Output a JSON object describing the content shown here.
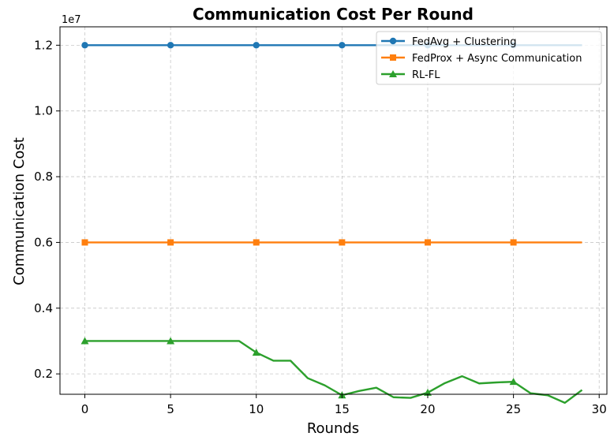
{
  "chart_data": {
    "type": "line",
    "title": "Communication Cost Per Round",
    "xlabel": "Rounds",
    "ylabel": "Communication Cost",
    "y_offset_label": "1e7",
    "xlim": [
      -1.45,
      30.45
    ],
    "ylim": [
      1.38,
      12.56
    ],
    "x_ticks": [
      0,
      5,
      10,
      15,
      20,
      25,
      30
    ],
    "y_ticks": [
      2,
      4,
      6,
      8,
      10,
      12
    ],
    "y_tick_labels": [
      "0.2",
      "0.4",
      "0.6",
      "0.8",
      "1.0",
      "1.2"
    ],
    "grid": true,
    "legend_position": "top-right",
    "x": [
      0,
      1,
      2,
      3,
      4,
      5,
      6,
      7,
      8,
      9,
      10,
      11,
      12,
      13,
      14,
      15,
      16,
      17,
      18,
      19,
      20,
      21,
      22,
      23,
      24,
      25,
      26,
      27,
      28,
      29
    ],
    "series": [
      {
        "name": "FedAvg + Clustering",
        "color": "#1f77b4",
        "marker": "circle",
        "values": [
          12,
          12,
          12,
          12,
          12,
          12,
          12,
          12,
          12,
          12,
          12,
          12,
          12,
          12,
          12,
          12,
          12,
          12,
          12,
          12,
          12,
          12,
          12,
          12,
          12,
          12,
          12,
          12,
          12,
          12
        ]
      },
      {
        "name": "FedProx + Async Communication",
        "color": "#ff7f0e",
        "marker": "square",
        "values": [
          6,
          6,
          6,
          6,
          6,
          6,
          6,
          6,
          6,
          6,
          6,
          6,
          6,
          6,
          6,
          6,
          6,
          6,
          6,
          6,
          6,
          6,
          6,
          6,
          6,
          6,
          6,
          6,
          6,
          6
        ]
      },
      {
        "name": "RL-FL",
        "color": "#2ca02c",
        "marker": "triangle",
        "values": [
          3.0,
          3.0,
          3.0,
          3.0,
          3.0,
          3.0,
          3.0,
          3.0,
          3.0,
          3.0,
          2.65,
          2.4,
          2.4,
          1.87,
          1.65,
          1.35,
          1.48,
          1.58,
          1.29,
          1.27,
          1.43,
          1.72,
          1.93,
          1.71,
          1.74,
          1.76,
          1.41,
          1.35,
          1.12,
          1.51
        ]
      }
    ]
  }
}
